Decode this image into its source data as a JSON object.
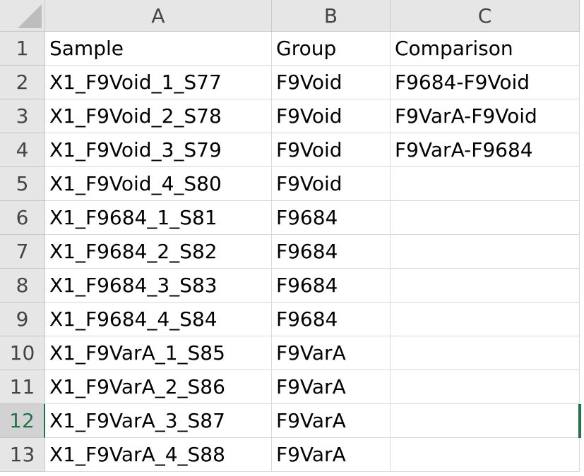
{
  "spreadsheet": {
    "columns": [
      "A",
      "B",
      "C"
    ],
    "row_numbers": [
      "1",
      "2",
      "3",
      "4",
      "5",
      "6",
      "7",
      "8",
      "9",
      "10",
      "11",
      "12",
      "13"
    ],
    "selected_row": "12",
    "cells": [
      [
        "Sample",
        "Group",
        "Comparison"
      ],
      [
        "X1_F9Void_1_S77",
        "F9Void",
        "F9684-F9Void"
      ],
      [
        "X1_F9Void_2_S78",
        "F9Void",
        "F9VarA-F9Void"
      ],
      [
        "X1_F9Void_3_S79",
        "F9Void",
        "F9VarA-F9684"
      ],
      [
        "X1_F9Void_4_S80",
        "F9Void",
        ""
      ],
      [
        "X1_F9684_1_S81",
        "F9684",
        ""
      ],
      [
        "X1_F9684_2_S82",
        "F9684",
        ""
      ],
      [
        "X1_F9684_3_S83",
        "F9684",
        ""
      ],
      [
        "X1_F9684_4_S84",
        "F9684",
        ""
      ],
      [
        "X1_F9VarA_1_S85",
        "F9VarA",
        ""
      ],
      [
        "X1_F9VarA_2_S86",
        "F9VarA",
        ""
      ],
      [
        "X1_F9VarA_3_S87",
        "F9VarA",
        ""
      ],
      [
        "X1_F9VarA_4_S88",
        "F9VarA",
        ""
      ]
    ],
    "colors": {
      "header_bg": "#e6e6e6",
      "selected_header_bg": "#d2d2d2",
      "selection_accent": "#217346"
    }
  }
}
